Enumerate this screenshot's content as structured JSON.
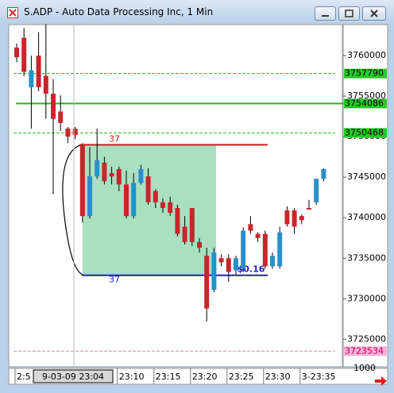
{
  "window": {
    "title": "S.ADP - Auto Data Processing Inc, 1 Min"
  },
  "chart_data": {
    "type": "candlestick",
    "up_color": "#2a8fc8",
    "down_color": "#c8262a",
    "open": [
      3761000,
      3762200,
      3756100,
      3760000,
      3757500,
      3755300,
      3753100,
      3751000,
      3751000,
      3749000,
      3740200,
      3745100,
      3746800,
      3745500,
      3746000,
      3744100,
      3740200,
      3744300,
      3745100,
      3743300,
      3741900,
      3741900,
      3741200,
      3738900,
      3741200,
      3737000,
      3735300,
      3731100,
      3735000,
      3735000,
      3733500,
      3733700,
      3739200,
      3738000,
      3738000,
      3734000,
      3734000,
      3740900,
      3740900,
      3740200,
      3741200,
      3741900,
      3744800
    ],
    "high": [
      3761500,
      3763400,
      3760000,
      3762900,
      3763900,
      3757100,
      3755100,
      3751200,
      3751200,
      3749200,
      3748700,
      3751000,
      3747500,
      3746300,
      3746300,
      3745800,
      3745500,
      3746500,
      3746100,
      3743500,
      3742400,
      3742600,
      3741600,
      3740200,
      3741200,
      3737500,
      3736300,
      3736300,
      3735500,
      3735500,
      3735300,
      3738800,
      3740200,
      3738200,
      3738400,
      3735700,
      3738900,
      3741400,
      3741200,
      3740400,
      3742200,
      3744800,
      3746100
    ],
    "low": [
      3759200,
      3757500,
      3751000,
      3755600,
      3752200,
      3742900,
      3750700,
      3749200,
      3749700,
      3739400,
      3739900,
      3744800,
      3744100,
      3744100,
      3743300,
      3739900,
      3739900,
      3744100,
      3741600,
      3741200,
      3740600,
      3740200,
      3737700,
      3736700,
      3736500,
      3735700,
      3727200,
      3730800,
      3734000,
      3732100,
      3733000,
      3733300,
      3738000,
      3737000,
      3733700,
      3733700,
      3733700,
      3738900,
      3738000,
      3739200,
      3741000,
      3741600,
      3744500
    ],
    "close": [
      3759800,
      3758000,
      3758200,
      3756100,
      3755300,
      3752200,
      3751700,
      3750000,
      3750200,
      3740200,
      3745100,
      3747100,
      3744500,
      3745100,
      3744100,
      3740200,
      3744300,
      3746000,
      3741900,
      3741900,
      3741200,
      3740600,
      3738000,
      3737000,
      3737000,
      3736300,
      3728800,
      3735700,
      3734500,
      3733300,
      3735000,
      3738400,
      3738400,
      3737500,
      3734000,
      3735300,
      3738200,
      3739200,
      3738900,
      3739700,
      3741000,
      3744800,
      3746000
    ],
    "ylim": [
      3721800,
      3765100
    ],
    "yticks": [
      3725000,
      3730000,
      3735000,
      3740000,
      3745000,
      3750000,
      3755000,
      3760000
    ],
    "xticks": [
      {
        "value": 0,
        "label": "2:5"
      },
      {
        "value": 14,
        "label": "23:10"
      },
      {
        "value": 19,
        "label": "23:15"
      },
      {
        "value": 24,
        "label": "23:20"
      },
      {
        "value": 29,
        "label": "23:25"
      },
      {
        "value": 34,
        "label": "23:30"
      },
      {
        "value": 39,
        "label": "3-23:35"
      }
    ],
    "cursor_label": "9-03-09 23:04",
    "scale_note": "1000",
    "levels": [
      {
        "value": 3757790,
        "color": "#22b822",
        "style": "dashed",
        "box": "#22cc22"
      },
      {
        "value": 3754086,
        "color": "#22b822",
        "style": "solid",
        "box": "#22cc22"
      },
      {
        "value": 3750468,
        "color": "#22b822",
        "style": "dashed",
        "box": "#22cc22"
      },
      {
        "value": 3723534,
        "color": "#e080b0",
        "style": "dashed",
        "box": "#ffb0d8"
      }
    ],
    "range_box": {
      "top": 3749000,
      "bottom": 3732900,
      "top_label": "37",
      "bottom_label": "37",
      "change_label": "$0.16",
      "color": "#a8e0c0"
    }
  }
}
